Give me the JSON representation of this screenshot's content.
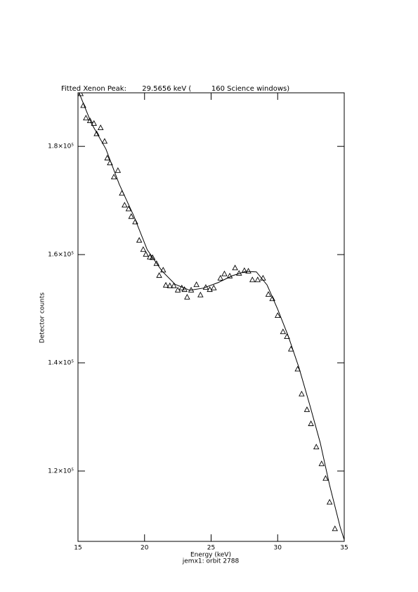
{
  "chart_data": {
    "type": "scatter",
    "title": "Fitted Xenon Peak:       29.5656 keV (         160 Science windows)",
    "x_label": "Energy (keV)",
    "y_label": "Detector counts",
    "subtitle": "jemx1: orbit 2788",
    "xlim": [
      15,
      35
    ],
    "xticks": [
      15,
      20,
      25,
      30,
      35
    ],
    "ylim": [
      107000,
      189900
    ],
    "yticks": [
      {
        "value": 120000,
        "label": "1.2×10⁵"
      },
      {
        "value": 140000,
        "label": "1.4×10⁵"
      },
      {
        "value": 160000,
        "label": "1.6×10⁵"
      },
      {
        "value": 180000,
        "label": "1.8×10⁵"
      }
    ],
    "color": "#000000",
    "series": [
      {
        "type": "scatter",
        "marker": "triangle",
        "x": [
          15.2,
          15.4,
          15.6,
          15.9,
          16.2,
          16.4,
          16.7,
          17.0,
          17.2,
          17.4,
          17.7,
          18.0,
          18.3,
          18.5,
          18.8,
          19.0,
          19.3,
          19.6,
          19.9,
          20.1,
          20.4,
          20.6,
          20.9,
          21.1,
          21.4,
          21.6,
          21.9,
          22.2,
          22.5,
          22.8,
          23.0,
          23.2,
          23.5,
          23.9,
          24.2,
          24.6,
          24.9,
          25.2,
          25.7,
          26.0,
          26.4,
          26.8,
          27.1,
          27.5,
          27.8,
          28.1,
          28.5,
          28.9,
          29.3,
          29.6,
          30.0,
          30.4,
          30.7,
          31.0,
          31.5,
          31.8,
          32.2,
          32.5,
          32.9,
          33.3,
          33.6,
          33.9,
          34.3
        ],
        "values": [
          189700,
          187500,
          185200,
          184700,
          184200,
          182300,
          183400,
          180900,
          177800,
          176900,
          174300,
          175500,
          171300,
          169100,
          168400,
          167000,
          166000,
          162600,
          160900,
          160000,
          159500,
          159400,
          158300,
          156100,
          157100,
          154300,
          154200,
          154200,
          153400,
          153800,
          153500,
          152100,
          153400,
          154400,
          152500,
          153900,
          153500,
          153800,
          155600,
          156400,
          156000,
          157500,
          156500,
          157000,
          156900,
          155300,
          155300,
          155600,
          152600,
          151800,
          148700,
          145700,
          144800,
          142500,
          138800,
          134200,
          131300,
          128700,
          124400,
          121300,
          118600,
          114200,
          109300
        ]
      },
      {
        "type": "line",
        "x": [
          15.0,
          16.0,
          17.1,
          18.1,
          19.2,
          20.2,
          21.3,
          22.3,
          23.4,
          24.4,
          25.5,
          26.6,
          27.6,
          28.4,
          29.2,
          30.0,
          30.8,
          31.6,
          32.4,
          33.2,
          33.9,
          34.7,
          35.0
        ],
        "values": [
          190400,
          184300,
          179500,
          173000,
          167100,
          160900,
          157000,
          154500,
          153400,
          153800,
          154800,
          156100,
          156900,
          156800,
          154400,
          149900,
          144900,
          139100,
          132300,
          125200,
          117400,
          109600,
          107300
        ]
      }
    ]
  }
}
